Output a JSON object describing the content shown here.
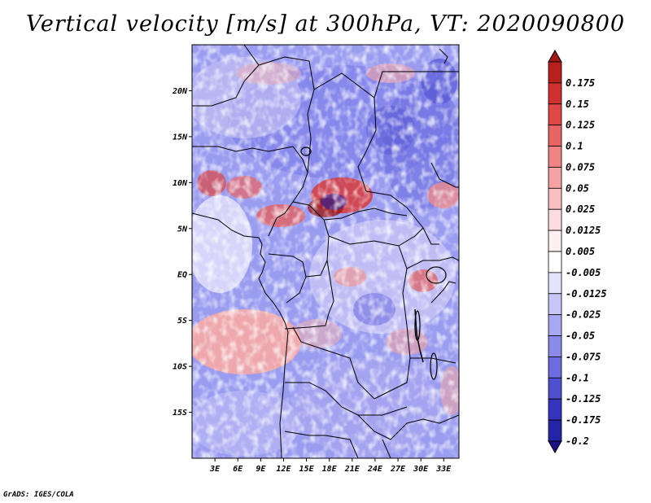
{
  "title": "Vertical velocity [m/s] at 300hPa, VT: 2020090800",
  "footer": "GrADS: IGES/COLA",
  "map": {
    "lon_range": [
      0,
      35
    ],
    "lat_range": [
      -20,
      25
    ],
    "lat_ticks": [
      {
        "value": 20,
        "label": "20N"
      },
      {
        "value": 15,
        "label": "15N"
      },
      {
        "value": 10,
        "label": "10N"
      },
      {
        "value": 5,
        "label": "5N"
      },
      {
        "value": 0,
        "label": "EQ"
      },
      {
        "value": -5,
        "label": "5S"
      },
      {
        "value": -10,
        "label": "10S"
      },
      {
        "value": -15,
        "label": "15S"
      }
    ],
    "lon_ticks": [
      {
        "value": 3,
        "label": "3E"
      },
      {
        "value": 6,
        "label": "6E"
      },
      {
        "value": 9,
        "label": "9E"
      },
      {
        "value": 12,
        "label": "12E"
      },
      {
        "value": 15,
        "label": "15E"
      },
      {
        "value": 18,
        "label": "18E"
      },
      {
        "value": 21,
        "label": "21E"
      },
      {
        "value": 24,
        "label": "24E"
      },
      {
        "value": 27,
        "label": "27E"
      },
      {
        "value": 30,
        "label": "30E"
      },
      {
        "value": 33,
        "label": "33E"
      }
    ],
    "colormap": "blue-white-red diverging",
    "features": "country borders, coastlines, lakes"
  },
  "colorbar": {
    "orientation": "vertical",
    "extend": "both",
    "max_color": "#a01818",
    "min_color": "#1a108a",
    "levels": [
      {
        "label": "0.175",
        "color": "#b82020"
      },
      {
        "label": "0.15",
        "color": "#d03030"
      },
      {
        "label": "0.125",
        "color": "#e04848"
      },
      {
        "label": "0.1",
        "color": "#ea6464"
      },
      {
        "label": "0.075",
        "color": "#f08484"
      },
      {
        "label": "0.05",
        "color": "#f4a2a2"
      },
      {
        "label": "0.025",
        "color": "#f8c0c0"
      },
      {
        "label": "0.0125",
        "color": "#fcdcdc"
      },
      {
        "label": "0.005",
        "color": "#fef0f0"
      },
      {
        "label": "-0.005",
        "color": "#ffffff"
      },
      {
        "label": "-0.0125",
        "color": "#e4e4fc"
      },
      {
        "label": "-0.025",
        "color": "#c6c6f8"
      },
      {
        "label": "-0.05",
        "color": "#a8a8f2"
      },
      {
        "label": "-0.075",
        "color": "#8a8aea"
      },
      {
        "label": "-0.1",
        "color": "#6c6ce0"
      },
      {
        "label": "-0.125",
        "color": "#4f4fd2"
      },
      {
        "label": "-0.175",
        "color": "#3434bf"
      },
      {
        "label": "-0.2",
        "color": "#2424a8"
      }
    ]
  }
}
